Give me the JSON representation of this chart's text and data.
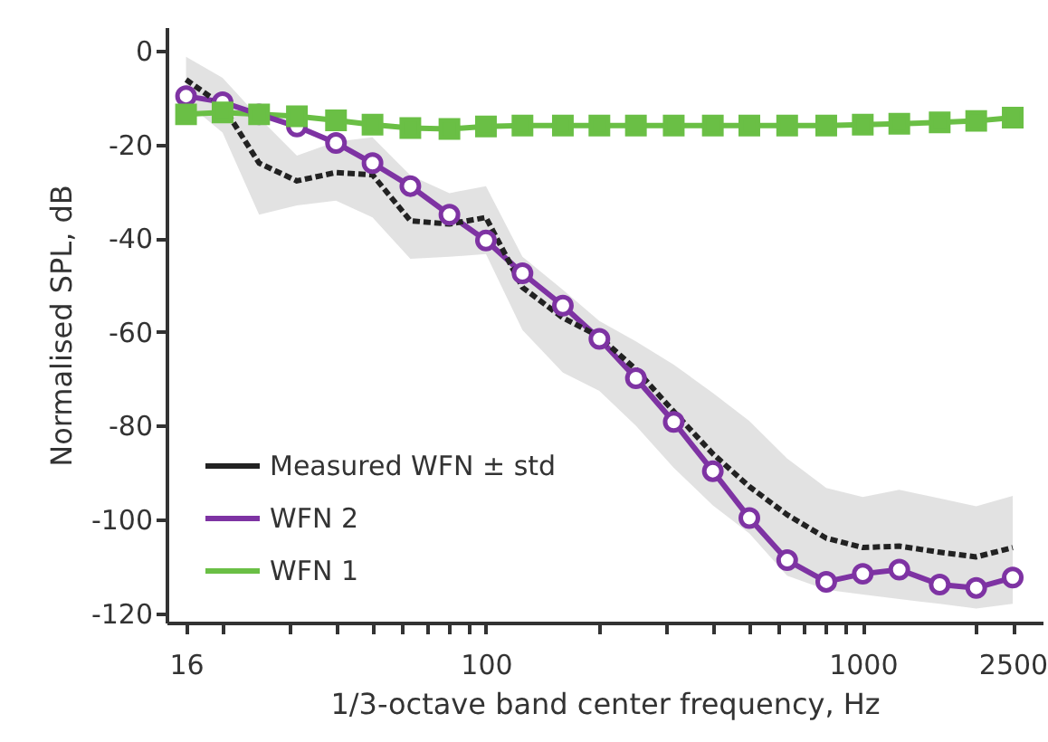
{
  "chart_data": {
    "type": "line",
    "xlabel": "1/3-octave band center frequency, Hz",
    "ylabel": "Normalised SPL, dB",
    "log": "x",
    "xlim": [
      14.2,
      3000
    ],
    "ylim": [
      -122,
      5
    ],
    "xticks": [
      16,
      {
        "value": 20,
        "label": null
      },
      {
        "value": 30,
        "label": null
      },
      {
        "value": 40,
        "label": null
      },
      {
        "value": 50,
        "label": null
      },
      {
        "value": 60,
        "label": null
      },
      {
        "value": 70,
        "label": null
      },
      {
        "value": 80,
        "label": null
      },
      {
        "value": 90,
        "label": null
      },
      100,
      {
        "value": 200,
        "label": null
      },
      {
        "value": 300,
        "label": null
      },
      {
        "value": 400,
        "label": null
      },
      {
        "value": 500,
        "label": null
      },
      {
        "value": 600,
        "label": null
      },
      {
        "value": 700,
        "label": null
      },
      {
        "value": 800,
        "label": null
      },
      {
        "value": 900,
        "label": null
      },
      1000,
      {
        "value": 2000,
        "label": null
      },
      2500
    ],
    "yticks": [
      0,
      -20,
      -40,
      -60,
      -80,
      -100,
      -120
    ],
    "x": [
      16,
      20,
      25,
      31.5,
      40,
      50,
      63,
      80,
      100,
      125,
      160,
      200,
      250,
      315,
      400,
      500,
      630,
      800,
      1000,
      1250,
      1600,
      2000,
      2500
    ],
    "legend": "bottom left",
    "series": [
      {
        "name": "Measured WFN ± std",
        "color": "#222222",
        "line_style": "dashed",
        "marker": "none",
        "values": [
          -6.2,
          -11.7,
          -24,
          -27.8,
          -26,
          -26.5,
          -36.3,
          -37,
          -35.6,
          -50.5,
          -57,
          -61,
          -68,
          -77,
          -86,
          -93,
          -99,
          -104,
          -106,
          -105.7,
          -107,
          -108,
          -106
        ],
        "lower": [
          -11,
          -17.5,
          -35,
          -33,
          -32,
          -35.6,
          -44.4,
          -44,
          -43.4,
          -59.6,
          -68.7,
          -72.6,
          -80,
          -89,
          -97,
          -103,
          -112,
          -115,
          -116,
          -117,
          -118,
          -119,
          -118
        ],
        "upper": [
          -1.3,
          -5.8,
          -14.3,
          -22.4,
          -19.4,
          -18.5,
          -26.6,
          -30.4,
          -28.9,
          -44,
          -51,
          -57.7,
          -62,
          -67,
          -73,
          -79,
          -87,
          -93.3,
          -95.2,
          -93.7,
          -95.5,
          -97.2,
          -95
        ]
      },
      {
        "name": "WFN 2",
        "color": "#7e33a3",
        "line_style": "solid",
        "marker": "circle",
        "values": [
          -9.7,
          -11,
          -13.6,
          -16.2,
          -19.7,
          -24,
          -28.9,
          -35,
          -40.5,
          -47.5,
          -54.4,
          -61.5,
          -69.9,
          -79.2,
          -89.7,
          -99.7,
          -108.7,
          -113.3,
          -111.6,
          -110.7,
          -113.9,
          -114.6,
          -112.4
        ]
      },
      {
        "name": "WFN 1",
        "color": "#6abf45",
        "line_style": "solid",
        "marker": "square",
        "values": [
          -13.6,
          -13.2,
          -13.6,
          -14,
          -14.9,
          -15.8,
          -16.5,
          -16.7,
          -16.2,
          -16,
          -16,
          -16,
          -16,
          -16,
          -16,
          -16,
          -16,
          -16,
          -15.8,
          -15.6,
          -15.3,
          -15,
          -14.3
        ]
      }
    ]
  }
}
